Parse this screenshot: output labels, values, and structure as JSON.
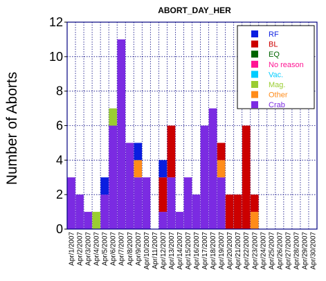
{
  "chart_data": {
    "type": "bar",
    "stacked": true,
    "title": "ABORT_DAY_HER",
    "xlabel": "",
    "ylabel": "Number of Aborts",
    "ylim": [
      0,
      12
    ],
    "yticks": [
      0,
      2,
      4,
      6,
      8,
      10,
      12
    ],
    "grid": true,
    "legend_position": "top-right",
    "categories": [
      "Apr/1/2007",
      "Apr/2/2007",
      "Apr/3/2007",
      "Apr/4/2007",
      "Apr/5/2007",
      "Apr/6/2007",
      "Apr/7/2007",
      "Apr/8/2007",
      "Apr/9/2007",
      "Apr/10/2007",
      "Apr/11/2007",
      "Apr/12/2007",
      "Apr/13/2007",
      "Apr/14/2007",
      "Apr/15/2007",
      "Apr/16/2007",
      "Apr/17/2007",
      "Apr/18/2007",
      "Apr/19/2007",
      "Apr/20/2007",
      "Apr/21/2007",
      "Apr/22/2007",
      "Apr/23/2007",
      "Apr/24/2007",
      "Apr/25/2007",
      "Apr/26/2007",
      "Apr/27/2007",
      "Apr/28/2007",
      "Apr/29/2007",
      "Apr/30/2007"
    ],
    "series": [
      {
        "name": "Crab",
        "color": "#7b2be2",
        "values": [
          3,
          2,
          1,
          0,
          2,
          6,
          11,
          5,
          3,
          3,
          0,
          1,
          3,
          1,
          3,
          2,
          6,
          7,
          3,
          0,
          0,
          0,
          0,
          0,
          0,
          0,
          0,
          0,
          0,
          0
        ]
      },
      {
        "name": "Mag.",
        "color": "#9acd32",
        "values": [
          0,
          0,
          0,
          1,
          0,
          1,
          0,
          0,
          0,
          0,
          0,
          0,
          0,
          0,
          0,
          0,
          0,
          0,
          0,
          0,
          0,
          0,
          0,
          0,
          0,
          0,
          0,
          0,
          0,
          0
        ]
      },
      {
        "name": "Other",
        "color": "#ff8c1a",
        "values": [
          0,
          0,
          0,
          0,
          0,
          0,
          0,
          0,
          1,
          0,
          0,
          0,
          0,
          0,
          0,
          0,
          0,
          0,
          1,
          0,
          0,
          0,
          1,
          0,
          0,
          0,
          0,
          0,
          0,
          0
        ]
      },
      {
        "name": "Vac.",
        "color": "#00ccff",
        "values": [
          0,
          0,
          0,
          0,
          0,
          0,
          0,
          0,
          0,
          0,
          0,
          0,
          0,
          0,
          0,
          0,
          0,
          0,
          0,
          0,
          0,
          0,
          0,
          0,
          0,
          0,
          0,
          0,
          0,
          0
        ]
      },
      {
        "name": "No reason",
        "color": "#ff1493",
        "values": [
          0,
          0,
          0,
          0,
          0,
          0,
          0,
          0,
          0,
          0,
          0,
          0,
          0,
          0,
          0,
          0,
          0,
          0,
          0,
          0,
          0,
          0,
          0,
          0,
          0,
          0,
          0,
          0,
          0,
          0
        ]
      },
      {
        "name": "EQ",
        "color": "#006400",
        "values": [
          0,
          0,
          0,
          0,
          0,
          0,
          0,
          0,
          0,
          0,
          0,
          0,
          0,
          0,
          0,
          0,
          0,
          0,
          0,
          0,
          0,
          0,
          0,
          0,
          0,
          0,
          0,
          0,
          0,
          0
        ]
      },
      {
        "name": "BL",
        "color": "#cc0000",
        "values": [
          0,
          0,
          0,
          0,
          0,
          0,
          0,
          0,
          0,
          0,
          0,
          2,
          3,
          0,
          0,
          0,
          0,
          0,
          1,
          2,
          2,
          6,
          1,
          0,
          0,
          0,
          0,
          0,
          0,
          0
        ]
      },
      {
        "name": "RF",
        "color": "#0a1ee0",
        "values": [
          0,
          0,
          0,
          0,
          1,
          0,
          0,
          0,
          1,
          0,
          0,
          1,
          0,
          0,
          0,
          0,
          0,
          0,
          0,
          0,
          0,
          0,
          0,
          0,
          0,
          0,
          0,
          0,
          0,
          0
        ]
      }
    ],
    "legend_order": [
      "RF",
      "BL",
      "EQ",
      "No reason",
      "Vac.",
      "Mag.",
      "Other",
      "Crab"
    ]
  }
}
